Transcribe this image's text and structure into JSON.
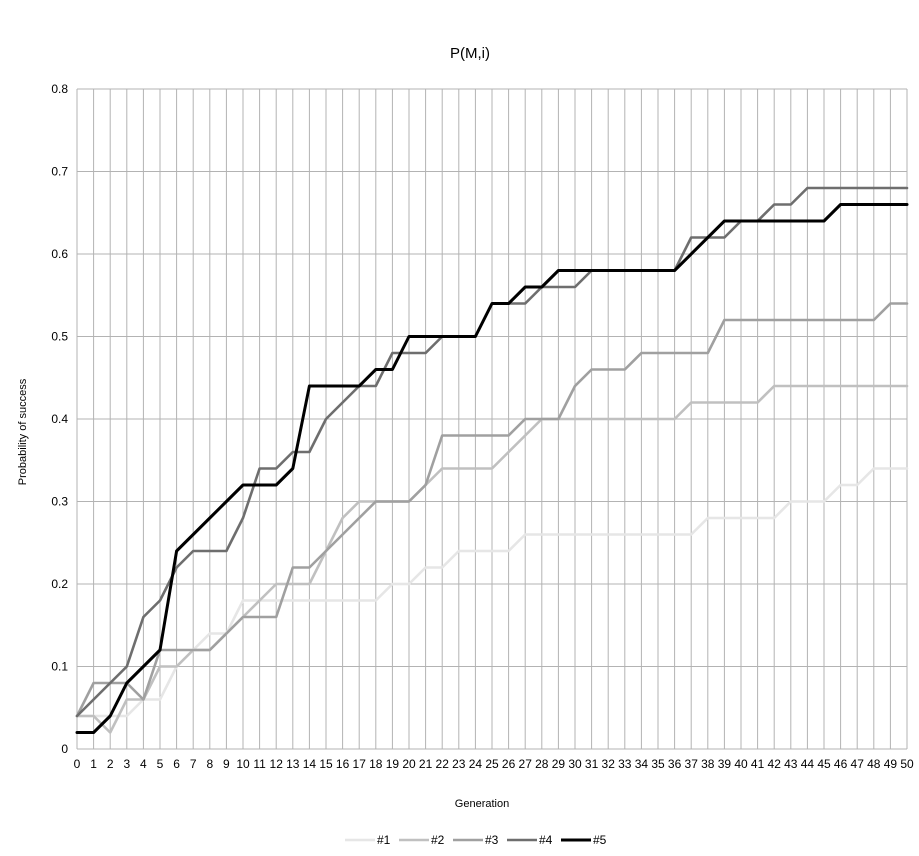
{
  "chart_data": {
    "type": "line",
    "title": "P(M,i)",
    "xlabel": "Generation",
    "ylabel": "Probability of  success",
    "x": [
      0,
      1,
      2,
      3,
      4,
      5,
      6,
      7,
      8,
      9,
      10,
      11,
      12,
      13,
      14,
      15,
      16,
      17,
      18,
      19,
      20,
      21,
      22,
      23,
      24,
      25,
      26,
      27,
      28,
      29,
      30,
      31,
      32,
      33,
      34,
      35,
      36,
      37,
      38,
      39,
      40,
      41,
      42,
      43,
      44,
      45,
      46,
      47,
      48,
      49,
      50
    ],
    "xlim": [
      0,
      50
    ],
    "ylim": [
      0,
      0.8
    ],
    "yticks": [
      0,
      0.1,
      0.2,
      0.3,
      0.4,
      0.5,
      0.6,
      0.7,
      0.8
    ],
    "ytick_labels": [
      "0",
      "0.1",
      "0.2",
      "0.3",
      "0.4",
      "0.5",
      "0.6",
      "0.7",
      "0.8"
    ],
    "grid": true,
    "legend_position": "bottom",
    "series": [
      {
        "name": "#1",
        "color": "#e6e6e6",
        "values": [
          0.04,
          0.04,
          0.04,
          0.04,
          0.06,
          0.06,
          0.1,
          0.12,
          0.14,
          0.14,
          0.18,
          0.18,
          0.18,
          0.18,
          0.18,
          0.18,
          0.18,
          0.18,
          0.18,
          0.2,
          0.2,
          0.22,
          0.22,
          0.24,
          0.24,
          0.24,
          0.24,
          0.26,
          0.26,
          0.26,
          0.26,
          0.26,
          0.26,
          0.26,
          0.26,
          0.26,
          0.26,
          0.26,
          0.28,
          0.28,
          0.28,
          0.28,
          0.28,
          0.3,
          0.3,
          0.3,
          0.32,
          0.32,
          0.34,
          0.34,
          0.34
        ]
      },
      {
        "name": "#2",
        "color": "#c0c0c0",
        "values": [
          0.04,
          0.04,
          0.02,
          0.06,
          0.06,
          0.1,
          0.1,
          0.12,
          0.12,
          0.14,
          0.16,
          0.18,
          0.2,
          0.2,
          0.2,
          0.24,
          0.28,
          0.3,
          0.3,
          0.3,
          0.3,
          0.32,
          0.34,
          0.34,
          0.34,
          0.34,
          0.36,
          0.38,
          0.4,
          0.4,
          0.4,
          0.4,
          0.4,
          0.4,
          0.4,
          0.4,
          0.4,
          0.42,
          0.42,
          0.42,
          0.42,
          0.42,
          0.44,
          0.44,
          0.44,
          0.44,
          0.44,
          0.44,
          0.44,
          0.44,
          0.44
        ]
      },
      {
        "name": "#3",
        "color": "#a0a0a0",
        "values": [
          0.04,
          0.08,
          0.08,
          0.08,
          0.06,
          0.12,
          0.12,
          0.12,
          0.12,
          0.14,
          0.16,
          0.16,
          0.16,
          0.22,
          0.22,
          0.24,
          0.26,
          0.28,
          0.3,
          0.3,
          0.3,
          0.32,
          0.38,
          0.38,
          0.38,
          0.38,
          0.38,
          0.4,
          0.4,
          0.4,
          0.44,
          0.46,
          0.46,
          0.46,
          0.48,
          0.48,
          0.48,
          0.48,
          0.48,
          0.52,
          0.52,
          0.52,
          0.52,
          0.52,
          0.52,
          0.52,
          0.52,
          0.52,
          0.52,
          0.54,
          0.54
        ]
      },
      {
        "name": "#4",
        "color": "#6e6e6e",
        "values": [
          0.04,
          0.06,
          0.08,
          0.1,
          0.16,
          0.18,
          0.22,
          0.24,
          0.24,
          0.24,
          0.28,
          0.34,
          0.34,
          0.36,
          0.36,
          0.4,
          0.42,
          0.44,
          0.44,
          0.48,
          0.48,
          0.48,
          0.5,
          0.5,
          0.5,
          0.54,
          0.54,
          0.54,
          0.56,
          0.56,
          0.56,
          0.58,
          0.58,
          0.58,
          0.58,
          0.58,
          0.58,
          0.62,
          0.62,
          0.62,
          0.64,
          0.64,
          0.66,
          0.66,
          0.68,
          0.68,
          0.68,
          0.68,
          0.68,
          0.68,
          0.68
        ]
      },
      {
        "name": "#5",
        "color": "#000000",
        "values": [
          0.02,
          0.02,
          0.04,
          0.08,
          0.1,
          0.12,
          0.24,
          0.26,
          0.28,
          0.3,
          0.32,
          0.32,
          0.32,
          0.34,
          0.44,
          0.44,
          0.44,
          0.44,
          0.46,
          0.46,
          0.5,
          0.5,
          0.5,
          0.5,
          0.5,
          0.54,
          0.54,
          0.56,
          0.56,
          0.58,
          0.58,
          0.58,
          0.58,
          0.58,
          0.58,
          0.58,
          0.58,
          0.6,
          0.62,
          0.64,
          0.64,
          0.64,
          0.64,
          0.64,
          0.64,
          0.64,
          0.66,
          0.66,
          0.66,
          0.66,
          0.66
        ]
      }
    ]
  }
}
